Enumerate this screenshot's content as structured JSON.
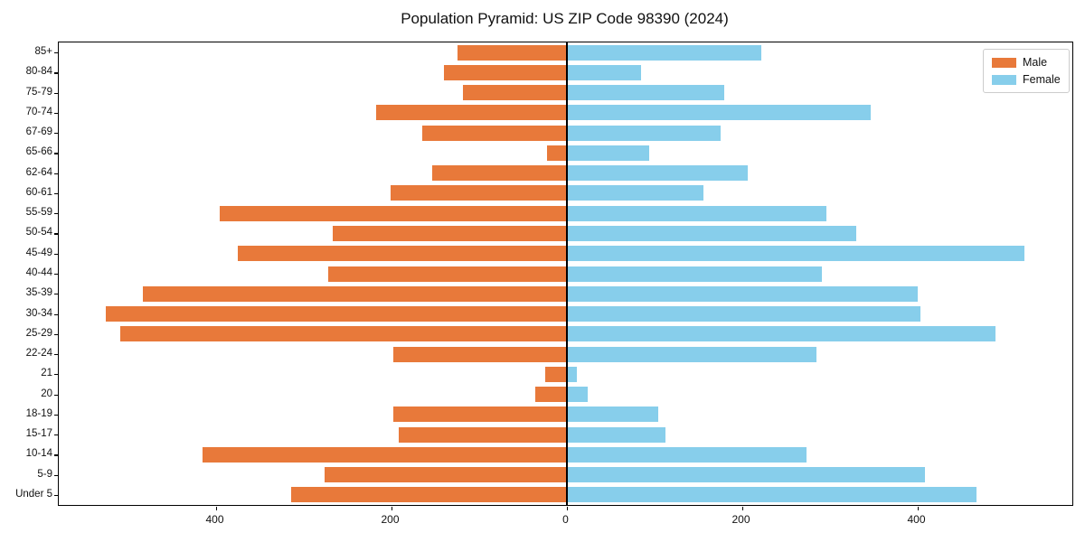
{
  "title": "Population Pyramid: US ZIP Code 98390 (2024)",
  "legend": {
    "items": [
      {
        "label": "Male",
        "color": "#E8793A"
      },
      {
        "label": "Female",
        "color": "#87CEEB"
      }
    ]
  },
  "chart_data": {
    "type": "bar",
    "variant": "population-pyramid",
    "title": "Population Pyramid: US ZIP Code 98390 (2024)",
    "categories": [
      "85+",
      "80-84",
      "75-79",
      "70-74",
      "67-69",
      "65-66",
      "62-64",
      "60-61",
      "55-59",
      "50-54",
      "45-49",
      "40-44",
      "35-39",
      "30-34",
      "25-29",
      "22-24",
      "21",
      "20",
      "18-19",
      "15-17",
      "10-14",
      "5-9",
      "Under 5"
    ],
    "series": [
      {
        "name": "Male",
        "side": "left",
        "color": "#E8793A",
        "values": [
          124,
          140,
          118,
          217,
          164,
          22,
          153,
          201,
          395,
          267,
          375,
          272,
          483,
          525,
          509,
          197,
          24,
          36,
          197,
          191,
          415,
          276,
          314
        ]
      },
      {
        "name": "Female",
        "side": "right",
        "color": "#87CEEB",
        "values": [
          222,
          85,
          180,
          347,
          176,
          94,
          207,
          156,
          296,
          330,
          522,
          291,
          401,
          404,
          489,
          285,
          12,
          24,
          105,
          113,
          274,
          409,
          468
        ]
      }
    ],
    "x_tick_values": [
      -400,
      -200,
      0,
      200,
      400
    ],
    "x_tick_labels": [
      "400",
      "200",
      "0",
      "200",
      "400"
    ],
    "xlim": [
      -578,
      575
    ],
    "grid": false,
    "legend_position": "upper right",
    "axis_color": "#000000",
    "background": "#ffffff"
  }
}
